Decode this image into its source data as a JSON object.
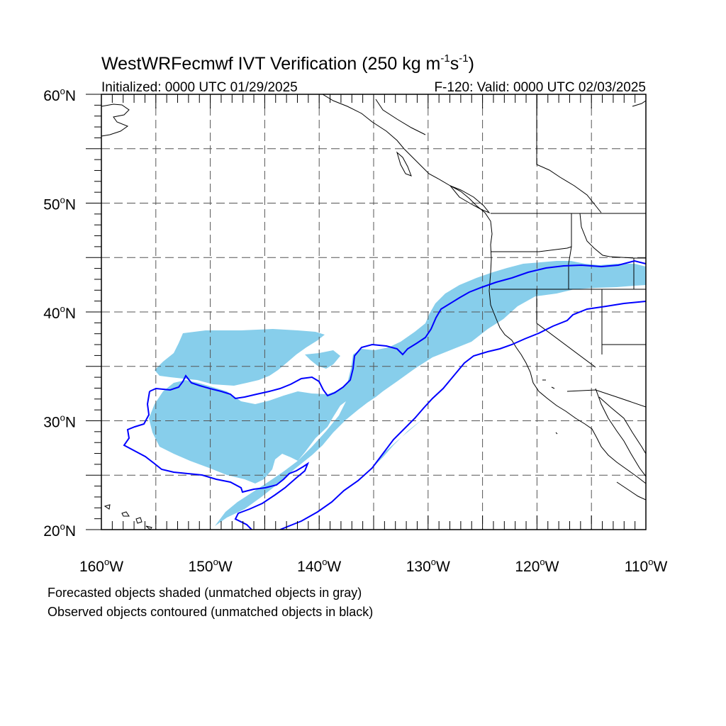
{
  "title": {
    "main": "WestWRFecmwf IVT Verification (250 kg m",
    "sup1": "-1",
    "mid": "s",
    "sup2": "-1",
    "end": ")"
  },
  "subtitle_left": "Initialized: 0000 UTC 01/29/2025",
  "subtitle_right": "F-120: Valid: 0000 UTC 02/03/2025",
  "map": {
    "lon_range": [
      -160,
      -110
    ],
    "lat_range": [
      20,
      60
    ],
    "grid_lon_step": 5,
    "grid_lat_step": 5,
    "lat_labels": [
      {
        "lat": 60,
        "label": "60"
      },
      {
        "lat": 50,
        "label": "50"
      },
      {
        "lat": 40,
        "label": "40"
      },
      {
        "lat": 30,
        "label": "30"
      },
      {
        "lat": 20,
        "label": "20"
      }
    ],
    "lat_suffix": "N",
    "lon_labels": [
      {
        "lon": -160,
        "label": "160"
      },
      {
        "lon": -150,
        "label": "150"
      },
      {
        "lon": -140,
        "label": "140"
      },
      {
        "lon": -130,
        "label": "130"
      },
      {
        "lon": -120,
        "label": "120"
      },
      {
        "lon": -110,
        "label": "110"
      }
    ],
    "lon_suffix": "W",
    "degree_symbol": "o",
    "colors": {
      "forecast_fill": "#87ceeb",
      "observed_contour": "#0000ff",
      "coastline": "#000000",
      "grid": "#555555"
    }
  },
  "footer": {
    "line1": "Forecasted objects shaded (unmatched objects in gray)",
    "line2": "Observed objects contoured (unmatched objects in black)"
  }
}
